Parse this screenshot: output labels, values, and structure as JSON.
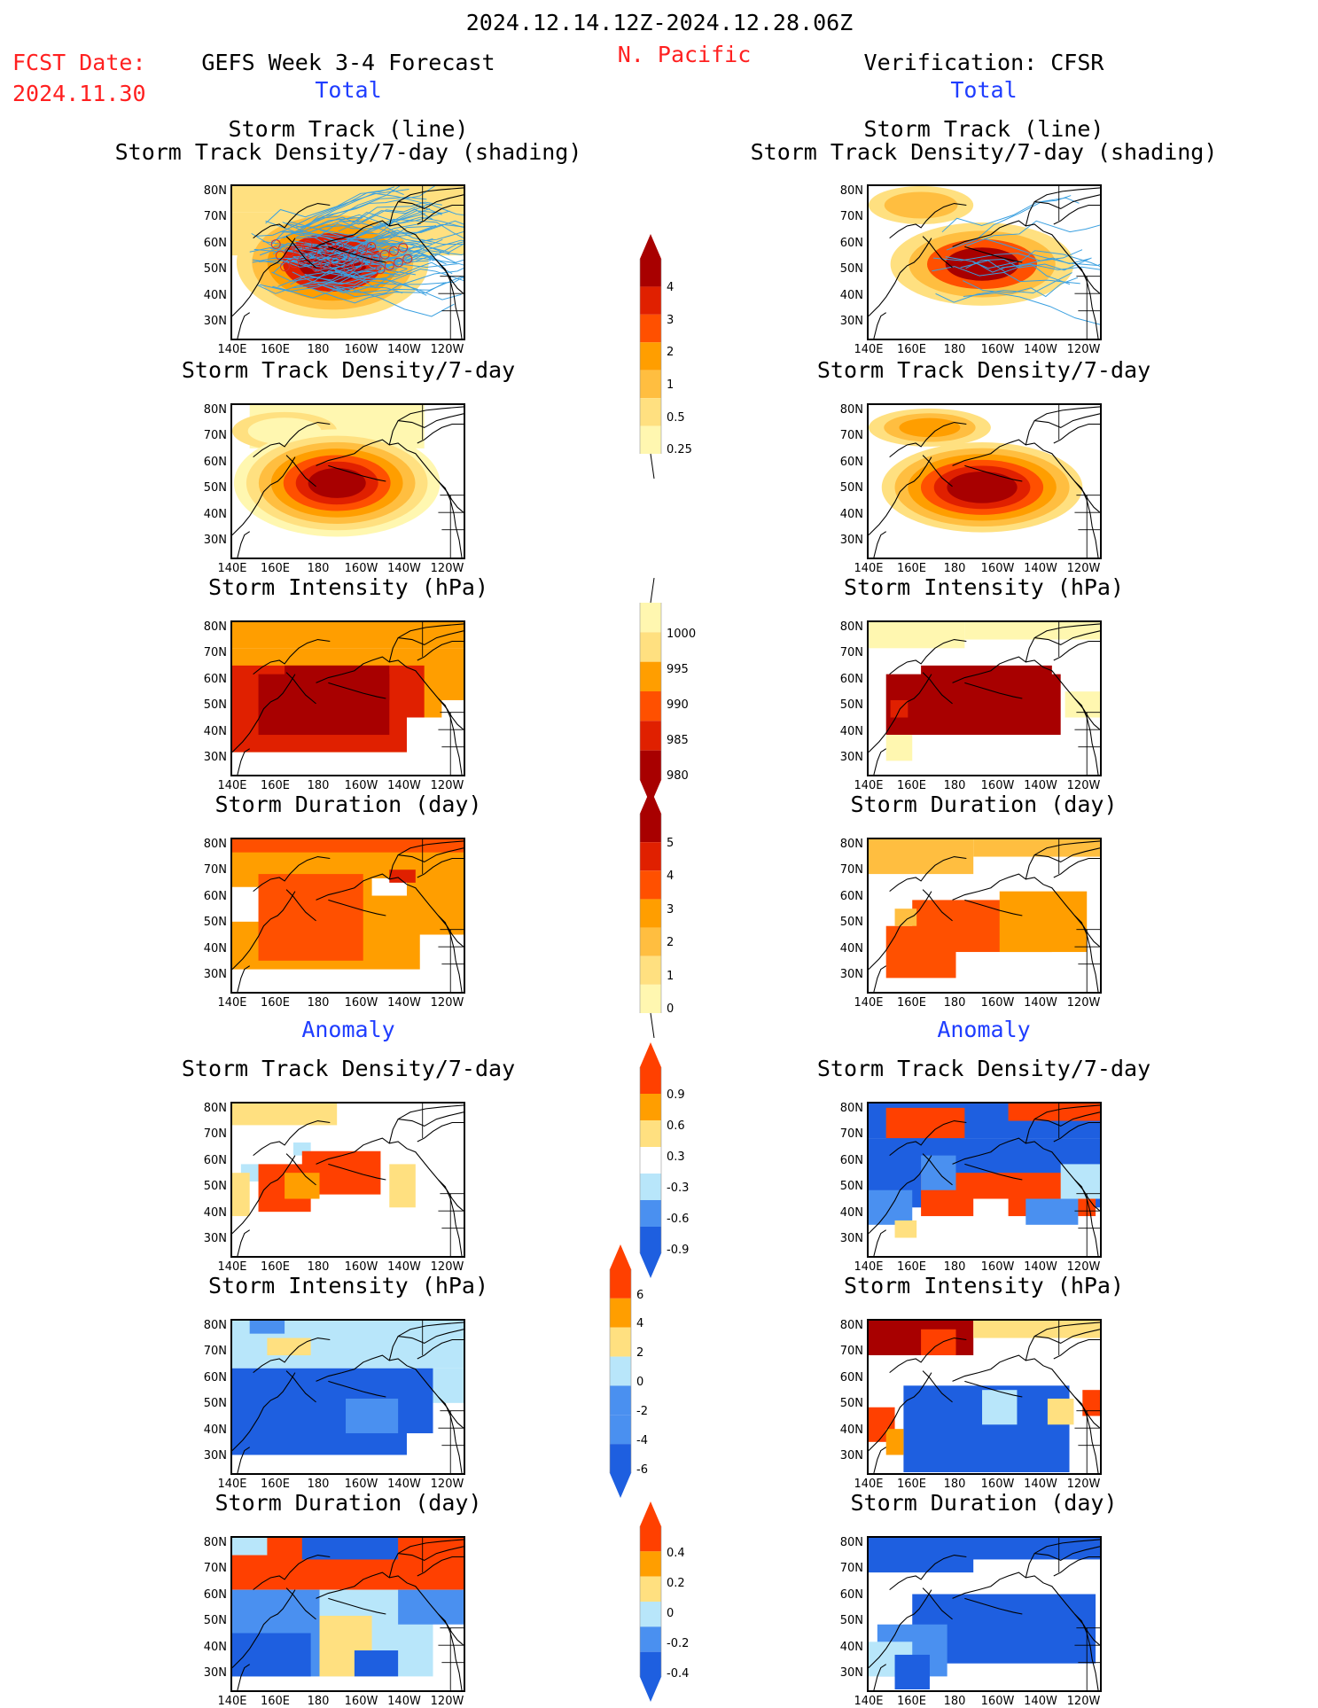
{
  "header": {
    "period": "2024.12.14.12Z-2024.12.28.06Z",
    "region": "N. Pacific",
    "fcst_label": "FCST Date:",
    "fcst_date": "2024.11.30",
    "forecast_title": "GEFS Week 3-4 Forecast",
    "verification_title": "Verification: CFSR",
    "total_label": "Total",
    "anomaly_label": "Anomaly"
  },
  "panel_titles": {
    "track_line": "Storm Track (line)",
    "track_shading": "Storm Track Density/7-day (shading)",
    "density": "Storm Track Density/7-day",
    "intensity": "Storm Intensity (hPa)",
    "duration": "Storm Duration (day)"
  },
  "axes": {
    "lat_labels": [
      "80N",
      "70N",
      "60N",
      "50N",
      "40N",
      "30N"
    ],
    "lon_labels": [
      "140E",
      "160E",
      "180",
      "160W",
      "140W",
      "120W"
    ]
  },
  "colorbars": {
    "density_total": [
      "4",
      "3",
      "2",
      "1",
      "0.5",
      "0.25"
    ],
    "intensity_total": [
      "1000",
      "995",
      "990",
      "985",
      "980"
    ],
    "duration_total": [
      "5",
      "4",
      "3",
      "2",
      "1",
      "0"
    ],
    "density_anom": [
      "0.9",
      "0.6",
      "0.3",
      "-0.3",
      "-0.6",
      "-0.9"
    ],
    "intensity_anom": [
      "6",
      "4",
      "2",
      "0",
      "-2",
      "-4",
      "-6"
    ],
    "duration_anom": [
      "0.4",
      "0.2",
      "0",
      "-0.2",
      "-0.4"
    ]
  },
  "colors": {
    "warm": [
      "#fff7b0",
      "#ffe080",
      "#ffbe40",
      "#ff9e00",
      "#ff5000",
      "#e02000",
      "#a80000"
    ],
    "anom": [
      "#1e5fe0",
      "#4a90f0",
      "#b8e6fa",
      "#ffffff",
      "#ffe080",
      "#ff9e00",
      "#ff4000",
      "#a80000"
    ],
    "track_line": "#3aa0e0"
  }
}
